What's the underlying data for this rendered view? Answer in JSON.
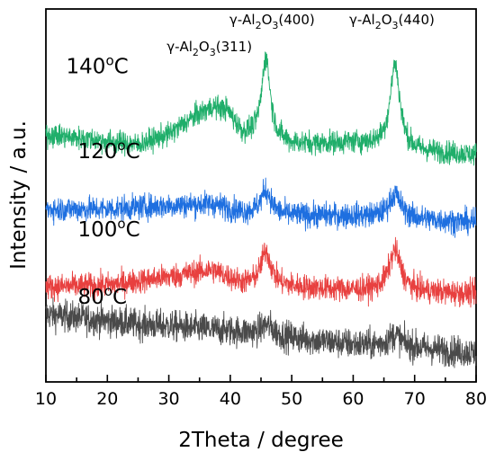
{
  "chart_data": {
    "type": "line",
    "xlabel": "2Theta / degree",
    "ylabel": "Intensity / a.u.",
    "xlim": [
      10,
      80
    ],
    "x_ticks": [
      "10",
      "20",
      "30",
      "40",
      "50",
      "60",
      "70",
      "80"
    ],
    "y_ticks_labeled": false,
    "grid": false,
    "legend": "none",
    "series": [
      {
        "name": "80",
        "color": "#4a4a4a",
        "offset": 8,
        "noise": 3.2,
        "baseline": [
          [
            10,
            12
          ],
          [
            20,
            10
          ],
          [
            25,
            9
          ],
          [
            30,
            8.5
          ],
          [
            40,
            7
          ],
          [
            50,
            5
          ],
          [
            60,
            3
          ],
          [
            70,
            2
          ],
          [
            80,
            0.5
          ]
        ],
        "peaks": [
          {
            "x": 46,
            "height": 3,
            "width": 1.2
          },
          {
            "x": 66.8,
            "height": 3.5,
            "width": 1.3
          }
        ]
      },
      {
        "name": "100",
        "color": "#e8403f",
        "offset": 26,
        "noise": 2.6,
        "baseline": [
          [
            10,
            2
          ],
          [
            20,
            2.5
          ],
          [
            30,
            5
          ],
          [
            37,
            7
          ],
          [
            42,
            3
          ],
          [
            50,
            2
          ],
          [
            60,
            1
          ],
          [
            70,
            0.5
          ],
          [
            80,
            0
          ]
        ],
        "peaks": [
          {
            "x": 45.8,
            "height": 10,
            "width": 1.0
          },
          {
            "x": 66.8,
            "height": 12,
            "width": 1.2
          }
        ]
      },
      {
        "name": "120",
        "color": "#1e6fe0",
        "offset": 47,
        "noise": 2.6,
        "baseline": [
          [
            10,
            4
          ],
          [
            20,
            4
          ],
          [
            30,
            5
          ],
          [
            37,
            5.5
          ],
          [
            42,
            3
          ],
          [
            50,
            2
          ],
          [
            60,
            2
          ],
          [
            70,
            1
          ],
          [
            80,
            0
          ]
        ],
        "peaks": [
          {
            "x": 45.8,
            "height": 7,
            "width": 1.0
          },
          {
            "x": 66.8,
            "height": 7,
            "width": 1.2
          }
        ]
      },
      {
        "name": "140",
        "color": "#1fae6a",
        "offset": 67,
        "noise": 2.4,
        "baseline": [
          [
            10,
            6
          ],
          [
            20,
            4
          ],
          [
            25,
            3
          ],
          [
            30,
            6
          ],
          [
            34,
            11
          ],
          [
            37,
            14
          ],
          [
            39.5,
            13
          ],
          [
            42,
            6
          ],
          [
            50,
            3
          ],
          [
            60,
            3.5
          ],
          [
            63,
            3
          ],
          [
            70,
            1
          ],
          [
            80,
            0
          ]
        ],
        "peaks": [
          {
            "x": 45.8,
            "height": 24,
            "width": 0.85
          },
          {
            "x": 66.8,
            "height": 25,
            "width": 0.95
          }
        ]
      }
    ],
    "series_labels": [
      {
        "text": "80",
        "sup": "o",
        "unit": "C",
        "x": 15.2,
        "y": 23
      },
      {
        "text": "100",
        "sup": "o",
        "unit": "C",
        "x": 15.2,
        "y": 43
      },
      {
        "text": "120",
        "sup": "o",
        "unit": "C",
        "x": 15.2,
        "y": 66
      },
      {
        "text": "140",
        "sup": "o",
        "unit": "C",
        "x": 13.3,
        "y": 91
      }
    ],
    "peak_annotations": [
      {
        "x": 36.6,
        "y": 97.5,
        "label": "γ-Al2O3(311)"
      },
      {
        "x": 46.8,
        "y": 105.5,
        "label": "γ-Al2O3(400)"
      },
      {
        "x": 66.3,
        "y": 105.5,
        "label": "γ-Al2O3(440)"
      }
    ],
    "y_range": [
      0,
      110
    ]
  }
}
